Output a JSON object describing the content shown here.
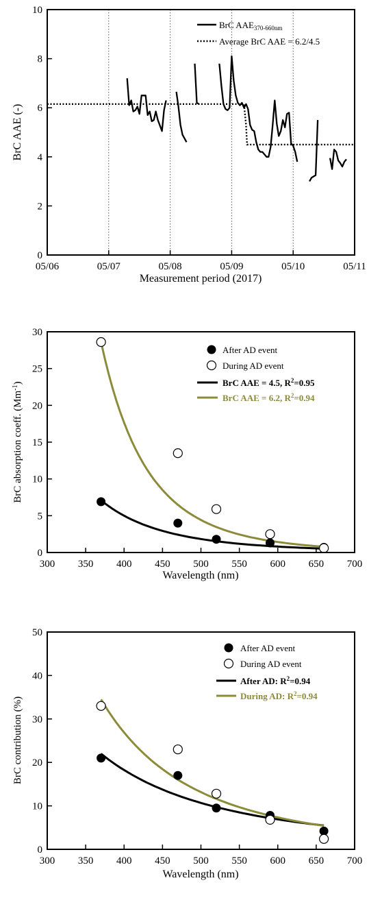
{
  "colors": {
    "black": "#000000",
    "olive": "#8b8b3a"
  },
  "chart_data": [
    {
      "type": "line",
      "xlabel": "Measurement period (2017)",
      "ylabel": "BrC AAE (-)",
      "xlim": [
        "2017-05-06",
        "2017-05-11"
      ],
      "xticks": [
        "05/06",
        "05/07",
        "05/08",
        "05/09",
        "05/10",
        "05/11"
      ],
      "ylim": [
        0,
        10
      ],
      "yticks": [
        0,
        2,
        4,
        6,
        8,
        10
      ],
      "vgrid_dates": [
        "2017-05-07",
        "2017-05-08",
        "2017-05-09",
        "2017-05-10"
      ],
      "legend": {
        "position": "top-right",
        "series_label": "BrC AAE",
        "series_subscript": "370-660nm",
        "avg_label": "Average BrC AAE = 6.2/4.5"
      },
      "series": [
        {
          "name": "BrC AAE370-660nm",
          "style": "solid",
          "segments": [
            [
              [
                "2017-05-07 07:12",
                7.2
              ],
              [
                "2017-05-07 08:00",
                6.1
              ],
              [
                "2017-05-07 08:48",
                6.3
              ],
              [
                "2017-05-07 09:36",
                5.85
              ],
              [
                "2017-05-07 10:24",
                5.9
              ],
              [
                "2017-05-07 11:12",
                6.05
              ],
              [
                "2017-05-07 12:00",
                5.75
              ],
              [
                "2017-05-07 12:48",
                6.5
              ],
              [
                "2017-05-07 14:24",
                6.5
              ],
              [
                "2017-05-07 15:12",
                5.7
              ],
              [
                "2017-05-07 16:00",
                5.85
              ],
              [
                "2017-05-07 16:48",
                5.45
              ],
              [
                "2017-05-07 17:36",
                5.5
              ],
              [
                "2017-05-07 18:24",
                5.85
              ],
              [
                "2017-05-07 19:12",
                5.5
              ],
              [
                "2017-05-07 20:48",
                5.05
              ],
              [
                "2017-05-07 21:36",
                5.9
              ],
              [
                "2017-05-07 22:24",
                6.3
              ]
            ],
            [
              [
                "2017-05-08 02:24",
                6.65
              ],
              [
                "2017-05-08 03:12",
                6.05
              ],
              [
                "2017-05-08 04:00",
                5.3
              ],
              [
                "2017-05-08 04:48",
                4.9
              ],
              [
                "2017-05-08 06:24",
                4.6
              ]
            ],
            [
              [
                "2017-05-08 09:36",
                7.8
              ],
              [
                "2017-05-08 10:24",
                6.2
              ],
              [
                "2017-05-08 11:12",
                6.15
              ]
            ],
            [
              [
                "2017-05-08 19:12",
                7.8
              ],
              [
                "2017-05-08 20:00",
                6.9
              ],
              [
                "2017-05-08 20:48",
                6.15
              ],
              [
                "2017-05-08 21:36",
                5.95
              ],
              [
                "2017-05-08 22:24",
                5.9
              ],
              [
                "2017-05-08 23:12",
                6.0
              ],
              [
                "2017-05-09 00:00",
                8.1
              ],
              [
                "2017-05-09 00:48",
                7.1
              ],
              [
                "2017-05-09 01:36",
                6.5
              ],
              [
                "2017-05-09 02:24",
                6.2
              ],
              [
                "2017-05-09 03:12",
                6.1
              ],
              [
                "2017-05-09 04:00",
                6.2
              ],
              [
                "2017-05-09 04:48",
                6.0
              ],
              [
                "2017-05-09 05:36",
                6.15
              ],
              [
                "2017-05-09 06:24",
                5.95
              ],
              [
                "2017-05-09 07:12",
                5.3
              ],
              [
                "2017-05-09 08:00",
                5.1
              ],
              [
                "2017-05-09 08:48",
                5.05
              ],
              [
                "2017-05-09 09:36",
                4.6
              ],
              [
                "2017-05-09 10:24",
                4.3
              ],
              [
                "2017-05-09 11:12",
                4.2
              ],
              [
                "2017-05-09 12:00",
                4.2
              ],
              [
                "2017-05-09 12:48",
                4.1
              ],
              [
                "2017-05-09 13:36",
                4.0
              ],
              [
                "2017-05-09 14:24",
                4.0
              ],
              [
                "2017-05-09 15:12",
                4.4
              ],
              [
                "2017-05-09 16:00",
                5.3
              ],
              [
                "2017-05-09 16:48",
                6.3
              ],
              [
                "2017-05-09 17:36",
                5.35
              ],
              [
                "2017-05-09 18:24",
                4.85
              ],
              [
                "2017-05-09 19:12",
                5.05
              ],
              [
                "2017-05-09 20:00",
                5.5
              ],
              [
                "2017-05-09 20:48",
                5.2
              ],
              [
                "2017-05-09 21:36",
                5.75
              ],
              [
                "2017-05-09 22:24",
                5.8
              ],
              [
                "2017-05-09 23:12",
                4.55
              ],
              [
                "2017-05-10 00:00",
                4.45
              ],
              [
                "2017-05-10 00:48",
                4.2
              ],
              [
                "2017-05-10 01:36",
                3.8
              ]
            ],
            [
              [
                "2017-05-10 06:24",
                3.0
              ],
              [
                "2017-05-10 07:12",
                3.15
              ],
              [
                "2017-05-10 08:00",
                3.2
              ],
              [
                "2017-05-10 08:48",
                3.25
              ],
              [
                "2017-05-10 09:36",
                5.5
              ]
            ],
            [
              [
                "2017-05-10 14:24",
                3.95
              ],
              [
                "2017-05-10 15:12",
                3.5
              ],
              [
                "2017-05-10 16:00",
                4.3
              ],
              [
                "2017-05-10 16:48",
                4.2
              ],
              [
                "2017-05-10 17:36",
                3.85
              ],
              [
                "2017-05-10 18:24",
                3.75
              ],
              [
                "2017-05-10 19:12",
                3.6
              ],
              [
                "2017-05-10 20:00",
                3.8
              ],
              [
                "2017-05-10 20:48",
                3.9
              ]
            ]
          ]
        },
        {
          "name": "Average BrC AAE = 6.2/4.5",
          "style": "dotted",
          "points": [
            [
              "2017-05-06 00:00",
              6.15
            ],
            [
              "2017-05-09 04:48",
              6.15
            ],
            [
              "2017-05-09 05:36",
              5.3
            ],
            [
              "2017-05-09 06:00",
              4.5
            ],
            [
              "2017-05-11 00:00",
              4.5
            ]
          ]
        }
      ]
    },
    {
      "type": "scatter",
      "xlabel": "Wavelength (nm)",
      "ylabel": "BrC absorption coeff. (Mm",
      "ylabel_sup": "-1",
      "ylabel_end": ")",
      "xlim": [
        300,
        700
      ],
      "xticks": [
        300,
        350,
        400,
        450,
        500,
        550,
        600,
        650,
        700
      ],
      "ylim": [
        0,
        30
      ],
      "yticks": [
        0,
        5,
        10,
        15,
        20,
        25,
        30
      ],
      "legend": {
        "position": "top-right"
      },
      "series": [
        {
          "name": "After AD event",
          "marker": "filled",
          "x": [
            370,
            470,
            520,
            590,
            660
          ],
          "y": [
            6.9,
            4.0,
            1.8,
            1.3,
            0.7
          ]
        },
        {
          "name": "During AD event",
          "marker": "open",
          "x": [
            370,
            470,
            520,
            590,
            660
          ],
          "y": [
            28.6,
            13.5,
            5.9,
            2.5,
            0.6
          ]
        }
      ],
      "fits": [
        {
          "name": "BrC AAE = 4.5, R",
          "r2": "=0.95",
          "color": "black",
          "ref_x": 370,
          "ref_y": 7.1,
          "exponent": 4.5,
          "x_range": [
            370,
            660
          ]
        },
        {
          "name": "BrC AAE = 6.2, R",
          "r2": "=0.94",
          "color": "olive",
          "ref_x": 370,
          "ref_y": 28.6,
          "exponent": 6.2,
          "x_range": [
            370,
            660
          ]
        }
      ]
    },
    {
      "type": "scatter",
      "xlabel": "Wavelength (nm)",
      "ylabel": "BrC contribution (%)",
      "xlim": [
        300,
        700
      ],
      "xticks": [
        300,
        350,
        400,
        450,
        500,
        550,
        600,
        650,
        700
      ],
      "ylim": [
        0,
        50
      ],
      "yticks": [
        0,
        10,
        20,
        30,
        40,
        50
      ],
      "legend": {
        "position": "top-right"
      },
      "series": [
        {
          "name": "After AD event",
          "marker": "filled",
          "x": [
            370,
            470,
            520,
            590,
            660
          ],
          "y": [
            21.0,
            17.0,
            9.5,
            7.8,
            4.2
          ]
        },
        {
          "name": "During AD event",
          "marker": "open",
          "x": [
            370,
            470,
            520,
            590,
            660
          ],
          "y": [
            33.0,
            23.0,
            12.8,
            6.8,
            2.4
          ]
        }
      ],
      "fits": [
        {
          "name": "After AD: R",
          "r2": "=0.94",
          "color": "black",
          "ref_x": 370,
          "ref_y": 22.0,
          "exponent": 2.4,
          "x_range": [
            370,
            660
          ]
        },
        {
          "name": "During AD: R",
          "r2": "=0.94",
          "color": "olive",
          "ref_x": 370,
          "ref_y": 34.5,
          "exponent": 3.2,
          "x_range": [
            370,
            660
          ]
        }
      ]
    }
  ]
}
